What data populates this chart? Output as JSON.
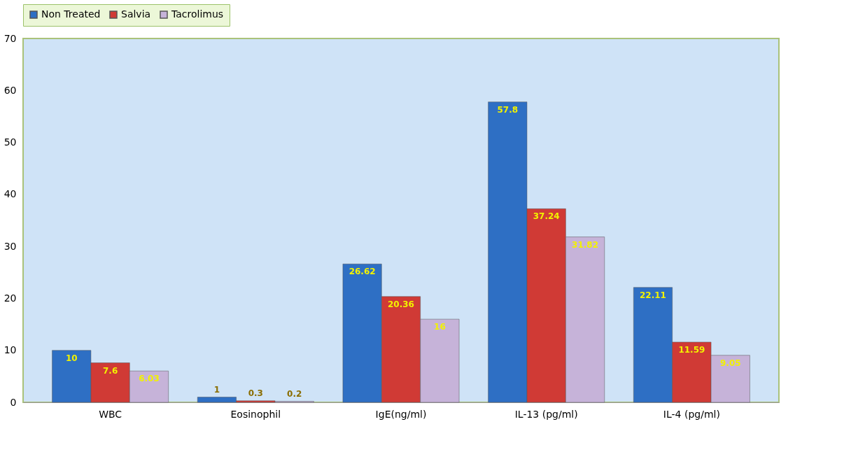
{
  "chart_data": {
    "type": "bar",
    "categories": [
      "WBC",
      "Eosinophil",
      "IgE(ng/ml)",
      "IL-13 (pg/ml)",
      "IL-4 (pg/ml)"
    ],
    "series": [
      {
        "name": "Non Treated",
        "color": "#2e6fc4",
        "values": [
          10,
          1,
          26.62,
          57.8,
          22.11
        ]
      },
      {
        "name": "Salvia",
        "color": "#d03a35",
        "values": [
          7.6,
          0.3,
          20.36,
          37.24,
          11.59
        ]
      },
      {
        "name": "Tacrolimus",
        "color": "#c6b3d9",
        "values": [
          6.03,
          0.2,
          16,
          31.82,
          9.05
        ]
      }
    ],
    "ylim": [
      0,
      70
    ],
    "yticks": [
      0,
      10,
      20,
      30,
      40,
      50,
      60,
      70
    ],
    "grid": false,
    "legend": "top",
    "data_labels": true
  }
}
